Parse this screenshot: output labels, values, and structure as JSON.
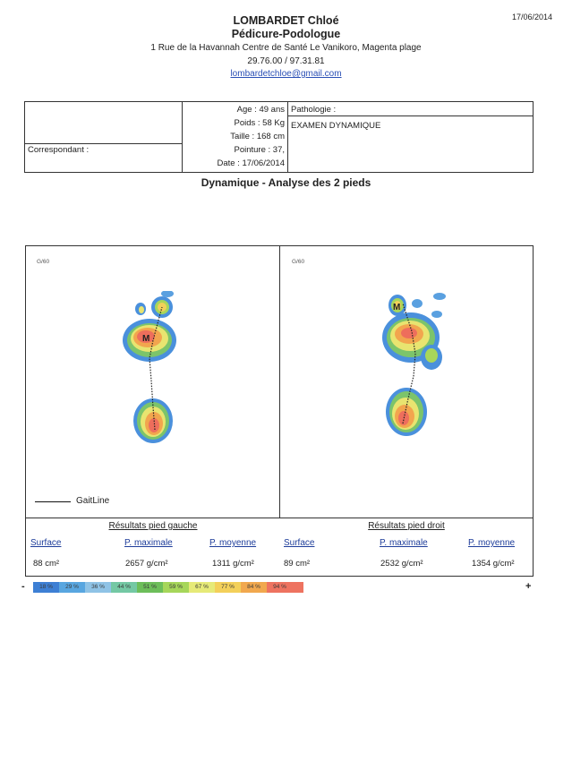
{
  "header": {
    "name": "LOMBARDET Chloé",
    "profession": "Pédicure-Podologue",
    "address": "1 Rue de la Havannah Centre de Santé Le Vanikoro, Magenta plage",
    "phone": "29.76.00 / 97.31.81",
    "email": "lombardetchloe@gmail.com",
    "print_date": "17/06/2014"
  },
  "patient": {
    "correspondant_label": "Correspondant :",
    "age": "Age : 49 ans",
    "weight": "Poids : 58 Kg",
    "height": "Taille : 168 cm",
    "shoe_size": "Pointure : 37,",
    "date": "Date : 17/06/2014",
    "pathology_label": "Pathologie :",
    "pathology_value": "EXAMEN DYNAMIQUE"
  },
  "section_title": "Dynamique - Analyse des 2 pieds",
  "scan": {
    "left_scale": "G/60",
    "right_scale": "G/60",
    "gaitline_label": "GaitLine",
    "mark_left": "M",
    "mark_right": "M"
  },
  "results_left": {
    "title": "Résultats pied gauche",
    "surface_label": "Surface",
    "pmax_label": "P. maximale",
    "pmean_label": "P. moyenne",
    "surface": "88 cm²",
    "pmax": "2657 g/cm²",
    "pmean": "1311 g/cm²"
  },
  "results_right": {
    "title": "Résultats pied droit",
    "surface_label": "Surface",
    "pmax_label": "P. maximale",
    "pmean_label": "P. moyenne",
    "surface": "89 cm²",
    "pmax": "2532 g/cm²",
    "pmean": "1354 g/cm²"
  },
  "legend": {
    "minus": "-",
    "plus": "+",
    "steps": [
      {
        "label": "18 %",
        "color": "#3d7fd4"
      },
      {
        "label": "29 %",
        "color": "#58a6e0"
      },
      {
        "label": "36 %",
        "color": "#8fc3e6"
      },
      {
        "label": "44 %",
        "color": "#74c8a4"
      },
      {
        "label": "51 %",
        "color": "#6dbe5a"
      },
      {
        "label": "59 %",
        "color": "#a6d65a"
      },
      {
        "label": "67 %",
        "color": "#e6ea78"
      },
      {
        "label": "77 %",
        "color": "#f3d05a"
      },
      {
        "label": "84 %",
        "color": "#f1a84e"
      },
      {
        "label": "94 %",
        "color": "#ee7360"
      }
    ]
  }
}
